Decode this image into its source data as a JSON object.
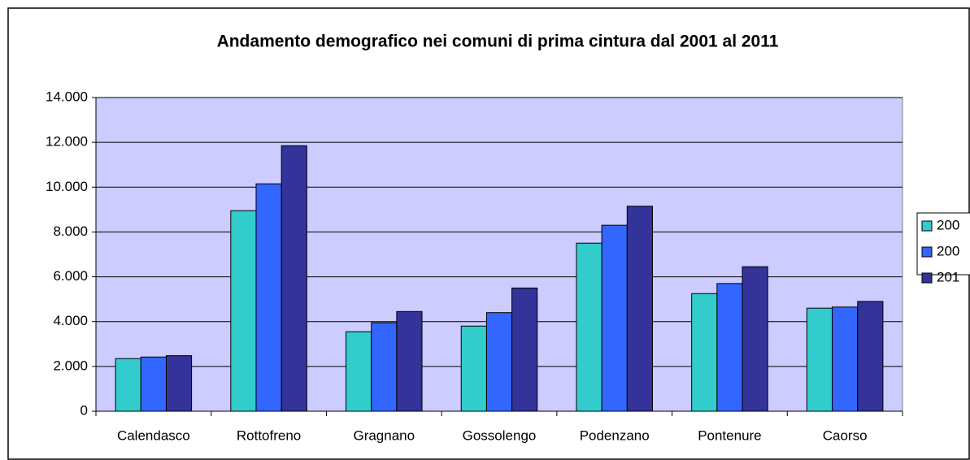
{
  "chart_data": {
    "type": "bar",
    "title": "Andamento demografico nei comuni di prima cintura dal 2001 al 2011",
    "categories": [
      "Calendasco",
      "Rottofreno",
      "Gragnano",
      "Gossolengo",
      "Podenzano",
      "Pontenure",
      "Caorso"
    ],
    "series": [
      {
        "name": "200",
        "color": "#33cccc",
        "values": [
          2350,
          8950,
          3550,
          3800,
          7500,
          5250,
          4600
        ]
      },
      {
        "name": "200",
        "color": "#3366ff",
        "values": [
          2420,
          10150,
          3950,
          4400,
          8300,
          5700,
          4650
        ]
      },
      {
        "name": "201",
        "color": "#333399",
        "values": [
          2480,
          11850,
          4450,
          5500,
          9150,
          6450,
          4900
        ]
      }
    ],
    "ylim": [
      0,
      14000
    ],
    "yticks": [
      0,
      {
        "value": 2000,
        "label": "2.000"
      },
      {
        "value": 4000,
        "label": "4.000"
      },
      {
        "value": 6000,
        "label": "6.000"
      },
      {
        "value": 8000,
        "label": "8.000"
      },
      {
        "value": 10000,
        "label": "10.000"
      },
      {
        "value": 12000,
        "label": "12.000"
      },
      {
        "value": 14000,
        "label": "14.000"
      }
    ],
    "grid": true,
    "plot_background": "#ccccff",
    "legend": "right"
  }
}
